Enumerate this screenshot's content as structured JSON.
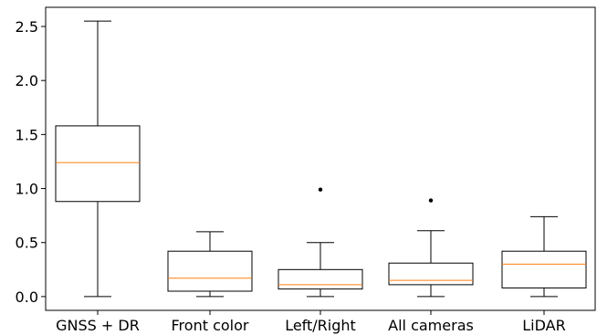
{
  "chart_data": {
    "type": "box",
    "categories": [
      "GNSS + DR",
      "Front color",
      "Left/Right",
      "All cameras",
      "LiDAR"
    ],
    "boxes": [
      {
        "whisker_low": 0.0,
        "q1": 0.88,
        "median": 1.24,
        "q3": 1.58,
        "whisker_high": 2.55,
        "outliers": []
      },
      {
        "whisker_low": 0.0,
        "q1": 0.05,
        "median": 0.17,
        "q3": 0.42,
        "whisker_high": 0.6,
        "outliers": []
      },
      {
        "whisker_low": 0.0,
        "q1": 0.07,
        "median": 0.11,
        "q3": 0.25,
        "whisker_high": 0.5,
        "outliers": [
          0.99
        ]
      },
      {
        "whisker_low": 0.0,
        "q1": 0.11,
        "median": 0.15,
        "q3": 0.31,
        "whisker_high": 0.61,
        "outliers": [
          0.89
        ]
      },
      {
        "whisker_low": 0.0,
        "q1": 0.08,
        "median": 0.3,
        "q3": 0.42,
        "whisker_high": 0.74,
        "outliers": []
      }
    ],
    "yticks": [
      "0.0",
      "0.5",
      "1.0",
      "1.5",
      "2.0",
      "2.5"
    ],
    "ylim": [
      -0.1275,
      2.6775
    ],
    "title": "",
    "xlabel": "",
    "ylabel": "",
    "colors": {
      "box": "#000000",
      "median": "#ff7f0e",
      "outlier": "#000000"
    }
  }
}
